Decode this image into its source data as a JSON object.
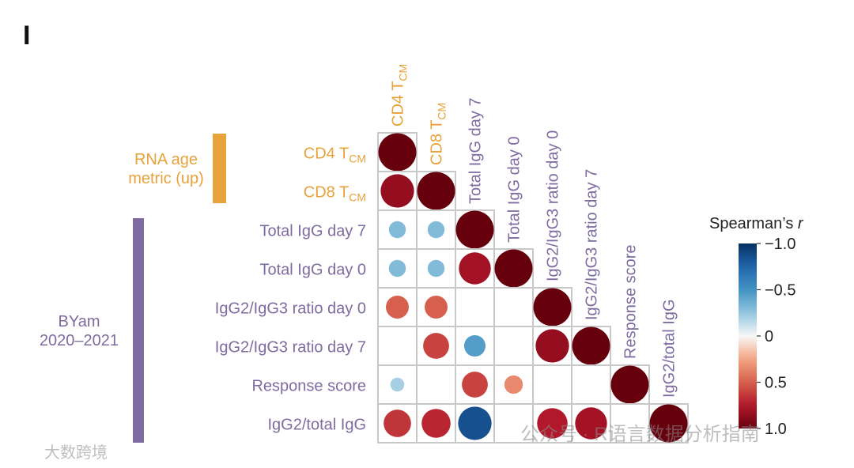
{
  "panel_label": "I",
  "watermarks": {
    "left": "大数跨境",
    "right": "公众号 · R语言数据分析指南"
  },
  "colors": {
    "group_orange": "#E8A23A",
    "group_purple": "#7E6BA0",
    "grid": "#C8C8C8"
  },
  "chart_data": {
    "type": "heatmap",
    "subtype": "correlation-circle-matrix",
    "variables": [
      {
        "label": "CD4 T",
        "sub": "CM",
        "group": "RNA age metric (up)"
      },
      {
        "label": "CD8 T",
        "sub": "CM",
        "group": "RNA age metric (up)"
      },
      {
        "label": "Total IgG day 7",
        "sub": "",
        "group": "BYam 2020–2021"
      },
      {
        "label": "Total IgG day 0",
        "sub": "",
        "group": "BYam 2020–2021"
      },
      {
        "label": "IgG2/IgG3 ratio day 0",
        "sub": "",
        "group": "BYam 2020–2021"
      },
      {
        "label": "IgG2/IgG3 ratio day 7",
        "sub": "",
        "group": "BYam 2020–2021"
      },
      {
        "label": "Response score",
        "sub": "",
        "group": "BYam 2020–2021"
      },
      {
        "label": "IgG2/total IgG",
        "sub": "",
        "group": "BYam 2020–2021"
      }
    ],
    "groups": [
      {
        "lines": [
          "RNA age",
          "metric (up)"
        ],
        "rows": [
          0,
          1
        ],
        "color": "#E8A23A"
      },
      {
        "lines": [
          "BYam",
          "2020–2021"
        ],
        "rows": [
          2,
          7
        ],
        "color": "#7E6BA0"
      }
    ],
    "matrix": [
      [
        1.0,
        null,
        null,
        null,
        null,
        null,
        null,
        null
      ],
      [
        0.85,
        1.0,
        null,
        null,
        null,
        null,
        null,
        null
      ],
      [
        -0.3,
        -0.3,
        1.0,
        null,
        null,
        null,
        null,
        null
      ],
      [
        -0.3,
        -0.3,
        0.8,
        1.0,
        null,
        null,
        null,
        null
      ],
      [
        0.5,
        0.5,
        null,
        null,
        1.0,
        null,
        null,
        null
      ],
      [
        null,
        0.6,
        -0.45,
        null,
        0.85,
        1.0,
        null,
        null
      ],
      [
        -0.2,
        null,
        0.6,
        0.35,
        null,
        null,
        1.0,
        null
      ],
      [
        0.65,
        0.7,
        -0.85,
        null,
        0.75,
        0.8,
        null,
        1.0
      ]
    ],
    "legend": {
      "title": "Spearman’s ",
      "title_italic": "r",
      "ticks": [
        "−1.0",
        "−0.5",
        "0",
        "0.5",
        "1.0"
      ],
      "range": [
        -1,
        1
      ],
      "inverted": true
    }
  }
}
